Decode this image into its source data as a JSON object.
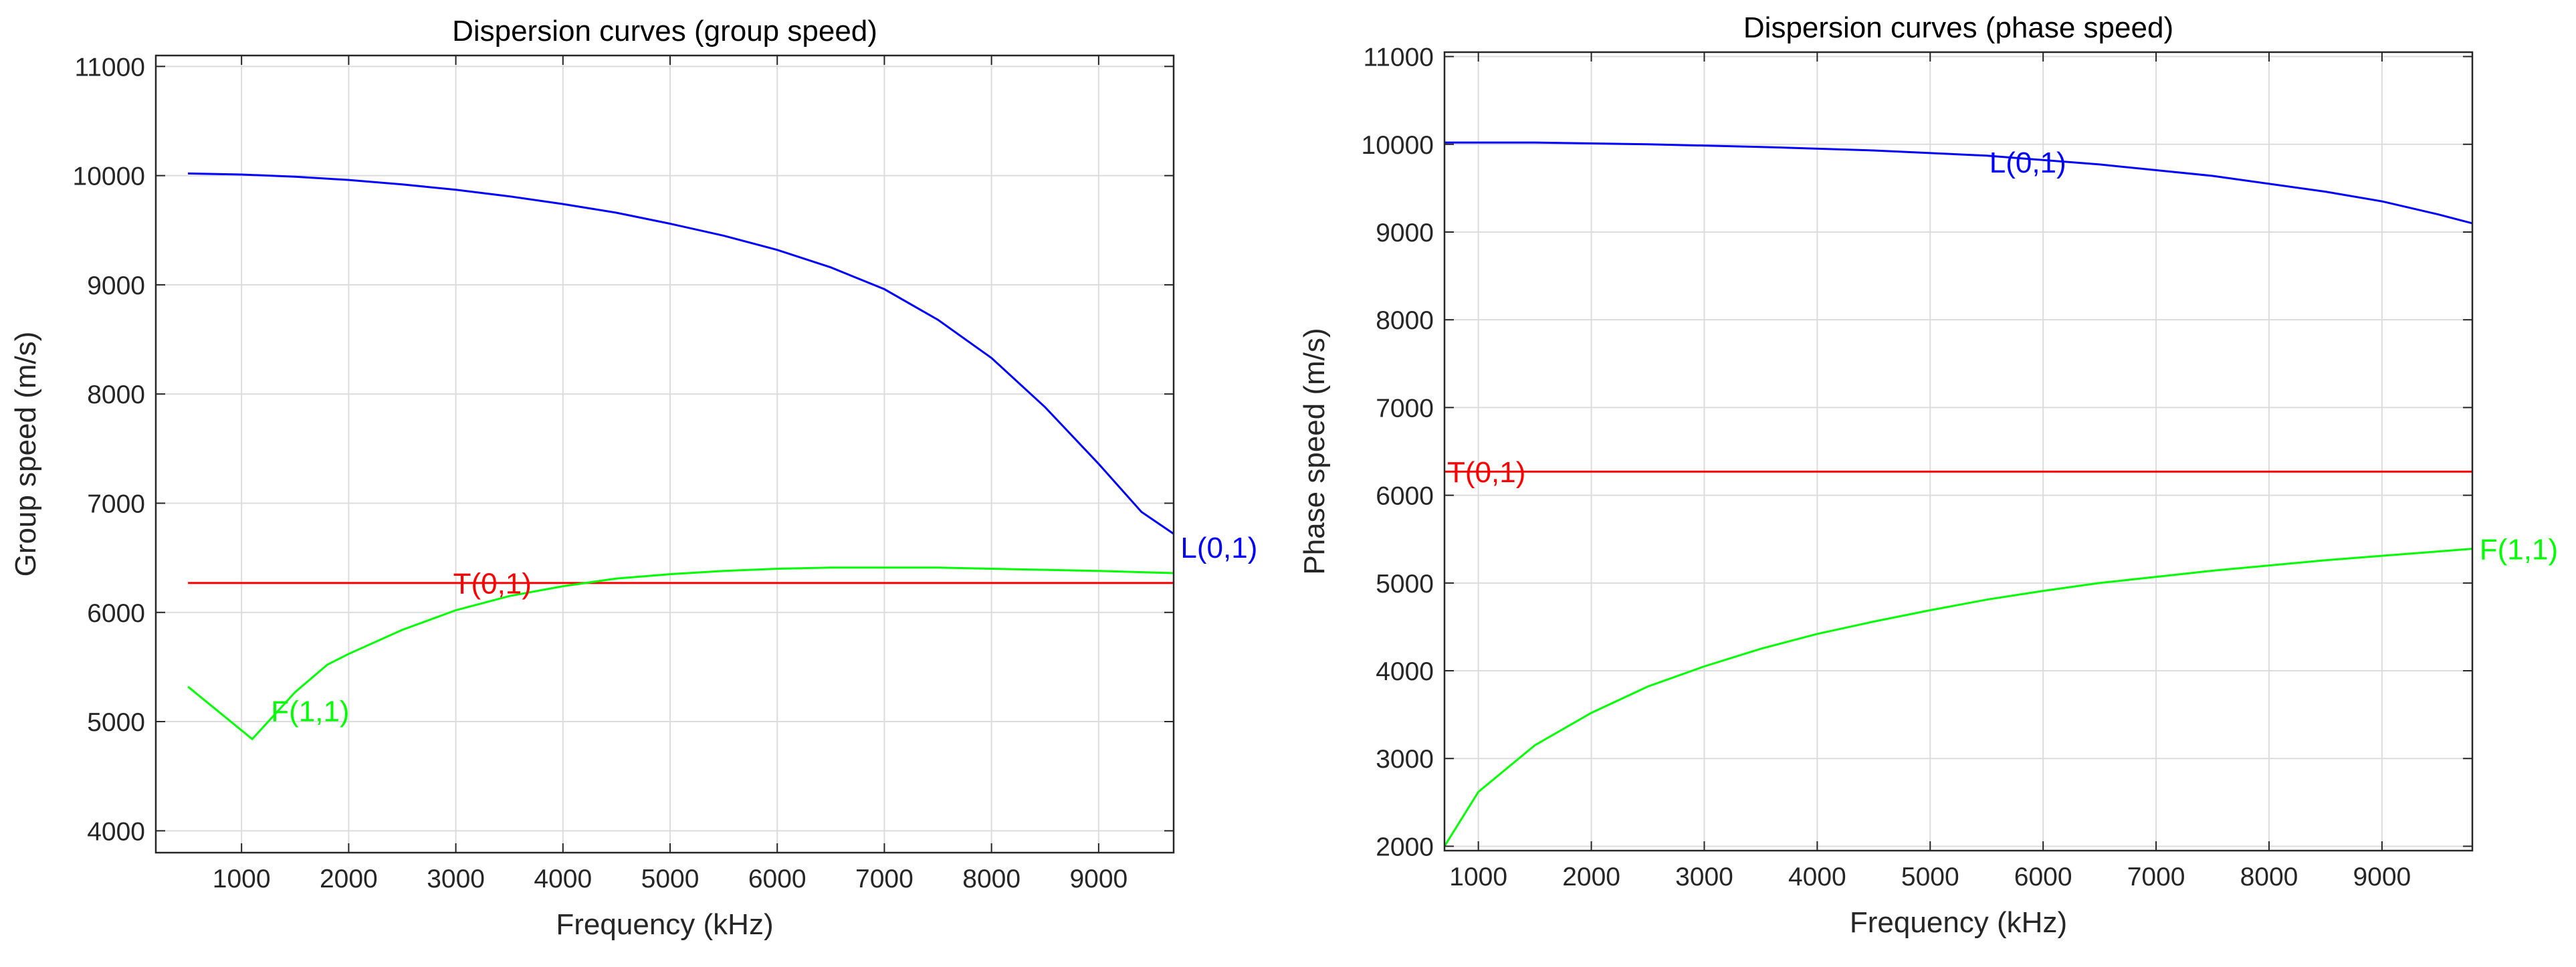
{
  "chart_data": [
    {
      "type": "line",
      "title": "Dispersion curves (group speed)",
      "xlabel": "Frequency (kHz)",
      "ylabel": "Group speed (m/s)",
      "xlim": [
        200,
        9700
      ],
      "ylim": [
        3800,
        11100
      ],
      "xticks": [
        1000,
        2000,
        3000,
        4000,
        5000,
        6000,
        7000,
        8000,
        9000
      ],
      "yticks": [
        4000,
        5000,
        6000,
        7000,
        8000,
        9000,
        10000,
        11000
      ],
      "grid": true,
      "series": [
        {
          "name": "L(0,1)",
          "color": "#0000ff",
          "x": [
            500,
            1000,
            1500,
            2000,
            2500,
            3000,
            3500,
            4000,
            4500,
            5000,
            5500,
            6000,
            6500,
            7000,
            7500,
            8000,
            8500,
            9000,
            9400,
            9700
          ],
          "y": [
            10020,
            10010,
            9990,
            9960,
            9920,
            9870,
            9810,
            9740,
            9660,
            9560,
            9450,
            9320,
            9160,
            8960,
            8680,
            8330,
            7880,
            7360,
            6920,
            6720
          ]
        },
        {
          "name": "T(0,1)",
          "color": "#ff0000",
          "x": [
            500,
            9700
          ],
          "y": [
            6270,
            6270
          ]
        },
        {
          "name": "F(1,1)",
          "color": "#00ff00",
          "x": [
            500,
            1100,
            1500,
            1800,
            2000,
            2500,
            3000,
            3500,
            4000,
            4500,
            5000,
            5500,
            6000,
            6500,
            7000,
            7500,
            8000,
            8500,
            9000,
            9700
          ],
          "y": [
            5320,
            4840,
            5270,
            5520,
            5620,
            5840,
            6020,
            6150,
            6240,
            6310,
            6350,
            6380,
            6400,
            6410,
            6410,
            6410,
            6400,
            6390,
            6380,
            6360
          ]
        }
      ],
      "annotations": [
        {
          "text": "L(0,1)",
          "series": "L(0,1)",
          "x": 9740,
          "y": 6600
        },
        {
          "text": "T(0,1)",
          "series": "T(0,1)",
          "x": 2950,
          "y": 6270
        },
        {
          "text": "F(1,1)",
          "series": "F(1,1)",
          "x": 1250,
          "y": 5100
        }
      ]
    },
    {
      "type": "line",
      "title": "Dispersion curves (phase speed)",
      "xlabel": "Frequency (kHz)",
      "ylabel": "Phase speed (m/s)",
      "xlim": [
        700,
        9800
      ],
      "ylim": [
        1950,
        11050
      ],
      "xticks": [
        1000,
        2000,
        3000,
        4000,
        5000,
        6000,
        7000,
        8000,
        9000
      ],
      "yticks": [
        2000,
        3000,
        4000,
        5000,
        6000,
        7000,
        8000,
        9000,
        10000,
        11000
      ],
      "grid": true,
      "series": [
        {
          "name": "L(0,1)",
          "color": "#0000ff",
          "x": [
            700,
            1500,
            2500,
            3500,
            4500,
            5500,
            6500,
            7500,
            8500,
            9000,
            9500,
            9800
          ],
          "y": [
            10020,
            10020,
            10000,
            9970,
            9930,
            9870,
            9770,
            9640,
            9460,
            9350,
            9200,
            9100
          ]
        },
        {
          "name": "T(0,1)",
          "color": "#ff0000",
          "x": [
            700,
            9800
          ],
          "y": [
            6270,
            6270
          ]
        },
        {
          "name": "F(1,1)",
          "color": "#00ff00",
          "x": [
            700,
            1000,
            1500,
            2000,
            2500,
            3000,
            3500,
            4000,
            4500,
            5000,
            5500,
            6000,
            6500,
            7000,
            7500,
            8000,
            8500,
            9000,
            9500,
            9800
          ],
          "y": [
            2000,
            2620,
            3150,
            3520,
            3820,
            4050,
            4250,
            4420,
            4560,
            4690,
            4810,
            4910,
            5000,
            5070,
            5140,
            5200,
            5260,
            5310,
            5360,
            5390
          ]
        }
      ],
      "annotations": [
        {
          "text": "L(0,1)",
          "series": "L(0,1)",
          "x": 5500,
          "y": 9800
        },
        {
          "text": "T(0,1)",
          "series": "T(0,1)",
          "x": 700,
          "y": 6270
        },
        {
          "text": "F(1,1)",
          "series": "F(1,1)",
          "x": 9840,
          "y": 5390
        }
      ]
    }
  ]
}
